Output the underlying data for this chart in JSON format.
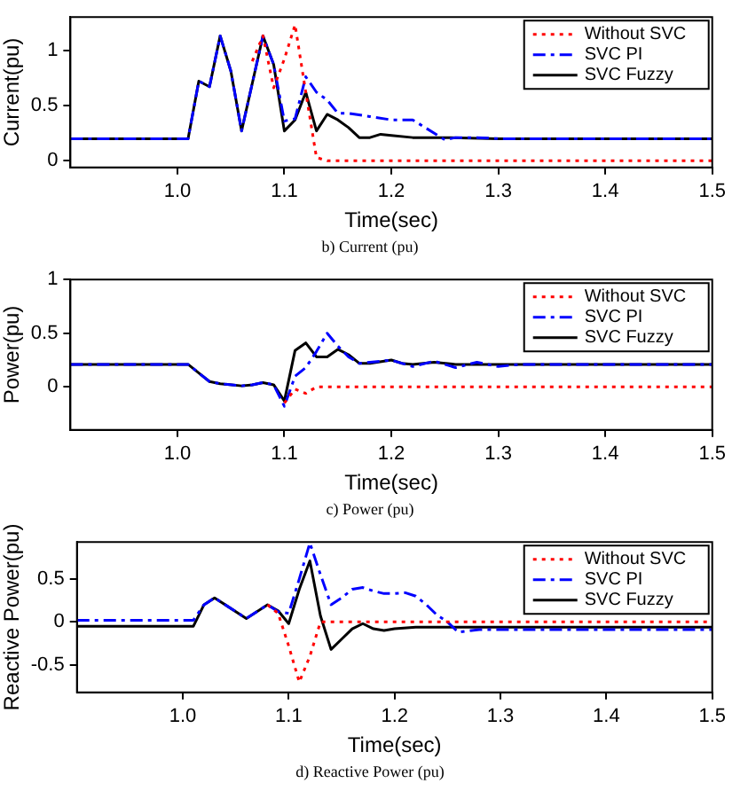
{
  "chart_data": [
    {
      "type": "line",
      "xlabel": "Time(sec)",
      "ylabel": "Current(pu)",
      "annotations": [
        "b) Current (pu)"
      ],
      "xlim": [
        0.9,
        1.5
      ],
      "ylim": [
        -0.06,
        1.3
      ],
      "xticks": [
        {
          "value": 1,
          "label": "1.0"
        },
        {
          "value": 1.1,
          "label": "1.1"
        },
        {
          "value": 1.2,
          "label": "1.2"
        },
        {
          "value": 1.3,
          "label": "1.3"
        },
        {
          "value": 1.4,
          "label": "1.4"
        },
        {
          "value": 1.5,
          "label": "1.5"
        }
      ],
      "yticks": [
        0,
        0.5,
        1
      ],
      "grid": false,
      "legend": "top right",
      "marker": "none",
      "series": [
        {
          "name": "Without SVC",
          "color": "#ff0000",
          "line_style": "dotted",
          "x": [
            1.07,
            1.08,
            1.09,
            1.1,
            1.11,
            1.12,
            1.13,
            1.14,
            1.5
          ],
          "values": [
            0.9,
            1.13,
            0.66,
            0.92,
            1.23,
            0.62,
            0.03,
            0,
            0
          ]
        },
        {
          "name": "SVC PI",
          "color": "#0000ff",
          "line_style": "dashed",
          "x": [
            0.9,
            1.01,
            1.02,
            1.03,
            1.04,
            1.05,
            1.06,
            1.07,
            1.08,
            1.09,
            1.1,
            1.11,
            1.12,
            1.13,
            1.14,
            1.15,
            1.16,
            1.18,
            1.2,
            1.22,
            1.23,
            1.25,
            1.26,
            1.28,
            1.3,
            1.5
          ],
          "values": [
            0.2,
            0.2,
            0.72,
            0.67,
            1.13,
            0.81,
            0.27,
            0.7,
            1.13,
            0.87,
            0.36,
            0.38,
            0.76,
            0.62,
            0.55,
            0.43,
            0.43,
            0.4,
            0.37,
            0.37,
            0.31,
            0.19,
            0.21,
            0.21,
            0.2,
            0.2
          ]
        },
        {
          "name": "SVC Fuzzy",
          "color": "#000000",
          "line_style": "solid",
          "x": [
            0.9,
            1.01,
            1.02,
            1.03,
            1.04,
            1.05,
            1.06,
            1.07,
            1.08,
            1.09,
            1.1,
            1.11,
            1.12,
            1.13,
            1.14,
            1.15,
            1.16,
            1.17,
            1.18,
            1.19,
            1.2,
            1.22,
            1.25,
            1.3,
            1.5
          ],
          "values": [
            0.2,
            0.2,
            0.72,
            0.67,
            1.13,
            0.81,
            0.27,
            0.7,
            1.13,
            0.87,
            0.27,
            0.37,
            0.62,
            0.27,
            0.42,
            0.37,
            0.3,
            0.21,
            0.21,
            0.24,
            0.23,
            0.21,
            0.21,
            0.2,
            0.2
          ]
        }
      ]
    },
    {
      "type": "line",
      "xlabel": "Time(sec)",
      "ylabel": "Power(pu)",
      "annotations": [
        "c) Power (pu)"
      ],
      "xlim": [
        0.9,
        1.5
      ],
      "ylim": [
        -0.4,
        1
      ],
      "xticks": [
        {
          "value": 1,
          "label": "1.0"
        },
        {
          "value": 1.1,
          "label": "1.1"
        },
        {
          "value": 1.2,
          "label": "1.2"
        },
        {
          "value": 1.3,
          "label": "1.3"
        },
        {
          "value": 1.4,
          "label": "1.4"
        },
        {
          "value": 1.5,
          "label": "1.5"
        }
      ],
      "yticks": [
        0,
        0.5,
        1
      ],
      "grid": false,
      "legend": "top right",
      "marker": "none",
      "series": [
        {
          "name": "Without SVC",
          "color": "#ff0000",
          "line_style": "dotted",
          "x": [
            1.1,
            1.11,
            1.12,
            1.13,
            1.5
          ],
          "values": [
            -0.15,
            -0.02,
            -0.06,
            0,
            0
          ]
        },
        {
          "name": "SVC PI",
          "color": "#0000ff",
          "line_style": "dashed",
          "x": [
            0.9,
            1.01,
            1.02,
            1.03,
            1.04,
            1.06,
            1.07,
            1.08,
            1.09,
            1.1,
            1.11,
            1.12,
            1.13,
            1.14,
            1.15,
            1.16,
            1.17,
            1.18,
            1.2,
            1.22,
            1.24,
            1.26,
            1.28,
            1.3,
            1.32,
            1.5
          ],
          "values": [
            0.21,
            0.21,
            0.13,
            0.05,
            0.03,
            0.01,
            0.02,
            0.04,
            0.02,
            -0.18,
            0.1,
            0.18,
            0.33,
            0.5,
            0.38,
            0.28,
            0.22,
            0.23,
            0.25,
            0.19,
            0.24,
            0.18,
            0.23,
            0.19,
            0.21,
            0.21
          ]
        },
        {
          "name": "SVC Fuzzy",
          "color": "#000000",
          "line_style": "solid",
          "x": [
            0.9,
            1.01,
            1.02,
            1.03,
            1.04,
            1.06,
            1.07,
            1.08,
            1.09,
            1.1,
            1.11,
            1.12,
            1.13,
            1.14,
            1.15,
            1.16,
            1.17,
            1.18,
            1.2,
            1.21,
            1.22,
            1.24,
            1.26,
            1.3,
            1.5
          ],
          "values": [
            0.21,
            0.21,
            0.13,
            0.05,
            0.03,
            0.01,
            0.02,
            0.04,
            0.02,
            -0.13,
            0.34,
            0.41,
            0.28,
            0.28,
            0.35,
            0.3,
            0.22,
            0.22,
            0.25,
            0.22,
            0.21,
            0.23,
            0.21,
            0.21,
            0.21
          ]
        }
      ]
    },
    {
      "type": "line",
      "xlabel": "Time(sec)",
      "ylabel": "Reactive Power(pu)",
      "annotations": [
        "d) Reactive Power (pu)"
      ],
      "xlim": [
        0.9,
        1.5
      ],
      "ylim": [
        -0.82,
        0.93
      ],
      "xticks": [
        {
          "value": 1,
          "label": "1.0"
        },
        {
          "value": 1.1,
          "label": "1.1"
        },
        {
          "value": 1.2,
          "label": "1.2"
        },
        {
          "value": 1.3,
          "label": "1.3"
        },
        {
          "value": 1.4,
          "label": "1.4"
        },
        {
          "value": 1.5,
          "label": "1.5"
        }
      ],
      "yticks": [
        -0.5,
        0,
        0.5
      ],
      "grid": false,
      "legend": "top right",
      "marker": "none",
      "series": [
        {
          "name": "Without SVC",
          "color": "#ff0000",
          "line_style": "dotted",
          "x": [
            1.08,
            1.09,
            1.1,
            1.11,
            1.12,
            1.13,
            1.5
          ],
          "values": [
            0.2,
            0.1,
            -0.28,
            -0.7,
            -0.4,
            0,
            0
          ]
        },
        {
          "name": "SVC PI",
          "color": "#0000ff",
          "line_style": "dashed",
          "x": [
            0.9,
            1.01,
            1.02,
            1.03,
            1.06,
            1.08,
            1.09,
            1.1,
            1.11,
            1.12,
            1.13,
            1.14,
            1.15,
            1.16,
            1.17,
            1.18,
            1.19,
            1.2,
            1.21,
            1.22,
            1.23,
            1.24,
            1.25,
            1.26,
            1.28,
            1.3,
            1.5
          ],
          "values": [
            0.02,
            0.02,
            0.2,
            0.28,
            0.04,
            0.2,
            0.12,
            0.1,
            0.5,
            0.92,
            0.55,
            0.2,
            0.28,
            0.38,
            0.4,
            0.36,
            0.33,
            0.33,
            0.34,
            0.3,
            0.2,
            0.08,
            0,
            -0.12,
            -0.09,
            -0.09,
            -0.09
          ]
        },
        {
          "name": "SVC Fuzzy",
          "color": "#000000",
          "line_style": "solid",
          "x": [
            0.9,
            1.01,
            1.02,
            1.03,
            1.06,
            1.08,
            1.09,
            1.1,
            1.11,
            1.12,
            1.13,
            1.14,
            1.15,
            1.16,
            1.17,
            1.18,
            1.19,
            1.2,
            1.22,
            1.3,
            1.5
          ],
          "values": [
            -0.05,
            -0.05,
            0.2,
            0.28,
            0.04,
            0.2,
            0.13,
            -0.02,
            0.38,
            0.71,
            0.07,
            -0.32,
            -0.2,
            -0.08,
            -0.02,
            -0.08,
            -0.1,
            -0.08,
            -0.06,
            -0.06,
            -0.06
          ]
        }
      ]
    }
  ]
}
